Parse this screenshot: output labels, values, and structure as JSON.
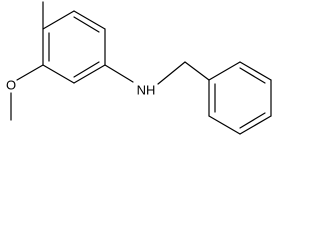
{
  "labels": [
    "O",
    "NH"
  ]
}
